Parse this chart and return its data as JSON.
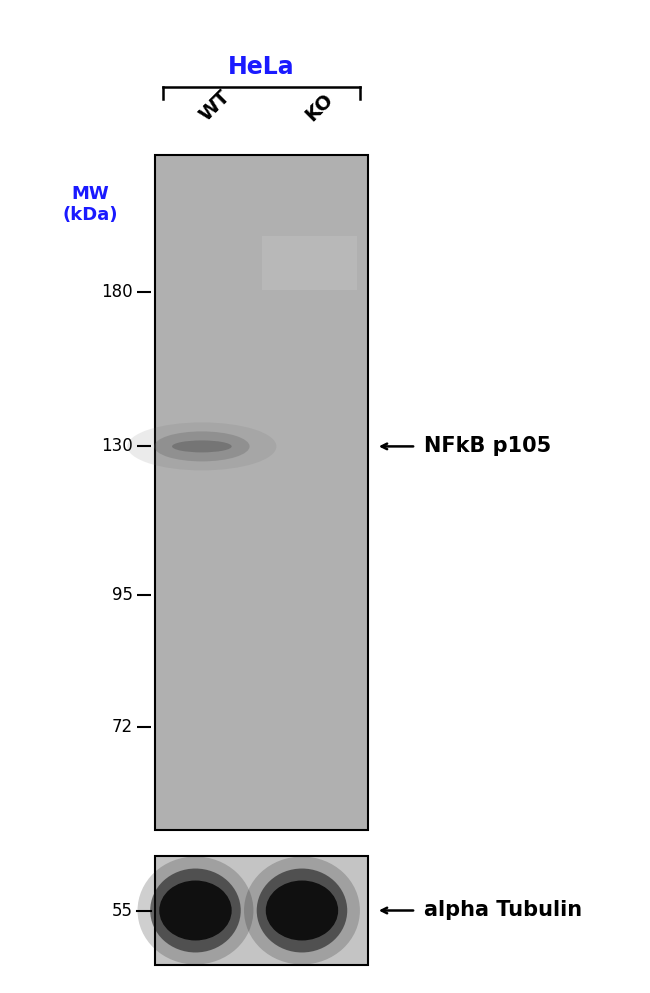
{
  "background_color": "#ffffff",
  "figure_width": 6.5,
  "figure_height": 9.93,
  "hela_label": "HeLa",
  "hela_color": "#1a1aff",
  "wt_label": "WT",
  "ko_label": "KO",
  "mw_label": "MW\n(kDa)",
  "mw_color": "#1a1aff",
  "gel_bg_color": "#b0b0b0",
  "gel2_bg_color": "#c0c0c0",
  "nfkb_label": "NFkB p105",
  "nfkb_color": "#000000",
  "alpha_tubulin_label": "alpha Tubulin",
  "alpha_tubulin_color": "#000000",
  "label_fontsize": 13,
  "tick_fontsize": 12,
  "annotation_fontsize": 15,
  "hela_fontsize": 17,
  "lane_label_fontsize": 14
}
